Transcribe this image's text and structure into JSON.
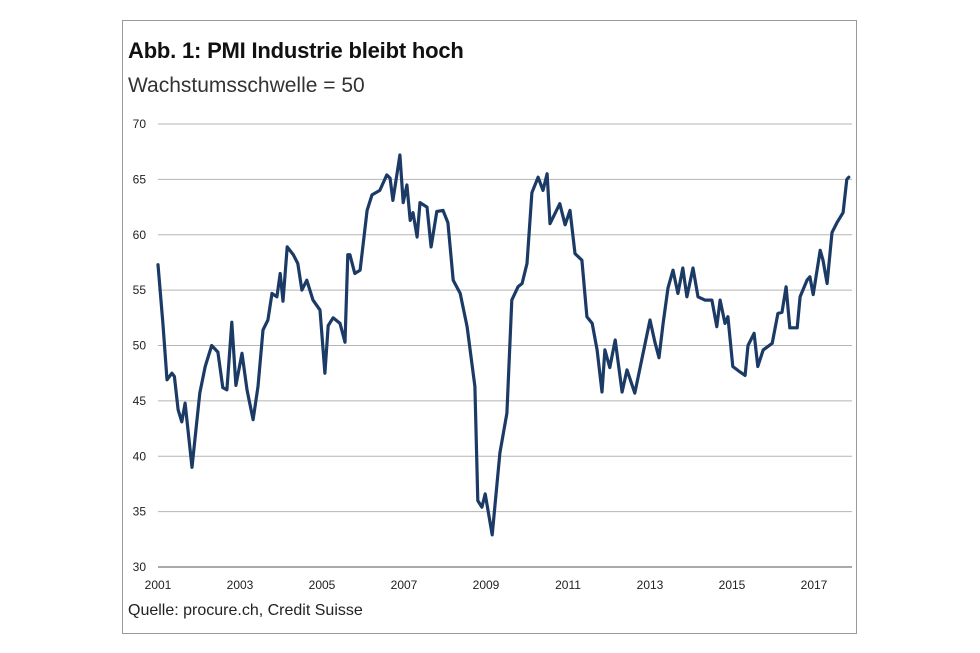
{
  "chart_data": {
    "type": "line",
    "title": "Abb. 1: PMI Industrie bleibt hoch",
    "subtitle": "Wachstumsschwelle = 50",
    "source": "Quelle: procure.ch, Credit Suisse",
    "xlabel": "",
    "ylabel": "",
    "xlim": [
      2001,
      2018
    ],
    "ylim": [
      30,
      70
    ],
    "x_ticks": [
      "2001",
      "2003",
      "2005",
      "2007",
      "2009",
      "2011",
      "2013",
      "2015",
      "2017"
    ],
    "y_ticks": [
      "30",
      "35",
      "40",
      "45",
      "50",
      "55",
      "60",
      "65",
      "70"
    ],
    "grid": "horizontal",
    "legend": "none",
    "line_color": "#1c3a66",
    "series": [
      {
        "points": [
          [
            2001.0,
            57.3
          ],
          [
            2001.12,
            52
          ],
          [
            2001.22,
            46.9
          ],
          [
            2001.34,
            47.5
          ],
          [
            2001.4,
            47.2
          ],
          [
            2001.49,
            44.2
          ],
          [
            2001.58,
            43.1
          ],
          [
            2001.66,
            44.8
          ],
          [
            2001.83,
            39.0
          ],
          [
            2002.02,
            45.7
          ],
          [
            2002.15,
            48.1
          ],
          [
            2002.31,
            50
          ],
          [
            2002.46,
            49.4
          ],
          [
            2002.58,
            46.2
          ],
          [
            2002.68,
            46
          ],
          [
            2002.8,
            52.1
          ],
          [
            2002.9,
            46.4
          ],
          [
            2003.05,
            49.3
          ],
          [
            2003.17,
            46
          ],
          [
            2003.32,
            43.3
          ],
          [
            2003.44,
            46.3
          ],
          [
            2003.56,
            51.4
          ],
          [
            2003.68,
            52.3
          ],
          [
            2003.78,
            54.7
          ],
          [
            2003.9,
            54.4
          ],
          [
            2003.98,
            56.5
          ],
          [
            2004.05,
            54
          ],
          [
            2004.15,
            58.9
          ],
          [
            2004.3,
            58.2
          ],
          [
            2004.41,
            57.4
          ],
          [
            2004.51,
            55
          ],
          [
            2004.63,
            55.9
          ],
          [
            2004.78,
            54.1
          ],
          [
            2004.95,
            53.2
          ],
          [
            2005.07,
            47.5
          ],
          [
            2005.15,
            51.8
          ],
          [
            2005.27,
            52.5
          ],
          [
            2005.44,
            52
          ],
          [
            2005.56,
            50.3
          ],
          [
            2005.63,
            58.2
          ],
          [
            2005.68,
            58.2
          ],
          [
            2005.8,
            56.5
          ],
          [
            2005.93,
            56.8
          ],
          [
            2006.1,
            62.2
          ],
          [
            2006.22,
            63.6
          ],
          [
            2006.41,
            64
          ],
          [
            2006.58,
            65.4
          ],
          [
            2006.66,
            65.1
          ],
          [
            2006.73,
            63.1
          ],
          [
            2006.9,
            67.2
          ],
          [
            2006.98,
            62.9
          ],
          [
            2007.07,
            64.5
          ],
          [
            2007.15,
            61.3
          ],
          [
            2007.22,
            62
          ],
          [
            2007.32,
            59.8
          ],
          [
            2007.39,
            62.9
          ],
          [
            2007.56,
            62.5
          ],
          [
            2007.66,
            58.9
          ],
          [
            2007.8,
            62.1
          ],
          [
            2007.95,
            62.2
          ],
          [
            2008.07,
            61.1
          ],
          [
            2008.2,
            55.9
          ],
          [
            2008.37,
            54.7
          ],
          [
            2008.54,
            51.7
          ],
          [
            2008.73,
            46.3
          ],
          [
            2008.8,
            36
          ],
          [
            2008.9,
            35.4
          ],
          [
            2008.98,
            36.6
          ],
          [
            2009.15,
            32.9
          ],
          [
            2009.34,
            40.3
          ],
          [
            2009.51,
            43.9
          ],
          [
            2009.63,
            54.1
          ],
          [
            2009.78,
            55.3
          ],
          [
            2009.88,
            55.6
          ],
          [
            2010.0,
            57.4
          ],
          [
            2010.12,
            63.8
          ],
          [
            2010.27,
            65.2
          ],
          [
            2010.39,
            64
          ],
          [
            2010.49,
            65.5
          ],
          [
            2010.56,
            61
          ],
          [
            2010.8,
            62.8
          ],
          [
            2010.93,
            60.9
          ],
          [
            2011.05,
            62.2
          ],
          [
            2011.17,
            58.3
          ],
          [
            2011.34,
            57.7
          ],
          [
            2011.46,
            52.6
          ],
          [
            2011.59,
            52
          ],
          [
            2011.71,
            49.6
          ],
          [
            2011.83,
            45.8
          ],
          [
            2011.9,
            49.6
          ],
          [
            2012.02,
            48
          ],
          [
            2012.15,
            50.5
          ],
          [
            2012.32,
            45.8
          ],
          [
            2012.44,
            47.8
          ],
          [
            2012.63,
            45.7
          ],
          [
            2013.0,
            52.3
          ],
          [
            2013.12,
            50.3
          ],
          [
            2013.22,
            48.9
          ],
          [
            2013.32,
            52
          ],
          [
            2013.44,
            55.2
          ],
          [
            2013.56,
            56.8
          ],
          [
            2013.68,
            54.7
          ],
          [
            2013.8,
            57
          ],
          [
            2013.9,
            54.4
          ],
          [
            2014.05,
            57
          ],
          [
            2014.17,
            54.4
          ],
          [
            2014.34,
            54.1
          ],
          [
            2014.51,
            54.1
          ],
          [
            2014.63,
            51.7
          ],
          [
            2014.71,
            54.1
          ],
          [
            2014.83,
            52
          ],
          [
            2014.9,
            52.6
          ],
          [
            2015.02,
            48.1
          ],
          [
            2015.2,
            47.6
          ],
          [
            2015.32,
            47.3
          ],
          [
            2015.39,
            50
          ],
          [
            2015.54,
            51.1
          ],
          [
            2015.63,
            48.1
          ],
          [
            2015.76,
            49.6
          ],
          [
            2015.98,
            50.2
          ],
          [
            2016.12,
            52.9
          ],
          [
            2016.22,
            53
          ],
          [
            2016.32,
            55.3
          ],
          [
            2016.41,
            51.6
          ],
          [
            2016.59,
            51.6
          ],
          [
            2016.66,
            54.4
          ],
          [
            2016.83,
            55.9
          ],
          [
            2016.9,
            56.2
          ],
          [
            2016.98,
            54.6
          ],
          [
            2017.15,
            58.6
          ],
          [
            2017.22,
            57.7
          ],
          [
            2017.32,
            55.6
          ],
          [
            2017.44,
            60.2
          ],
          [
            2017.56,
            61.1
          ],
          [
            2017.71,
            62
          ],
          [
            2017.8,
            65
          ],
          [
            2017.85,
            65.2
          ]
        ]
      }
    ]
  }
}
